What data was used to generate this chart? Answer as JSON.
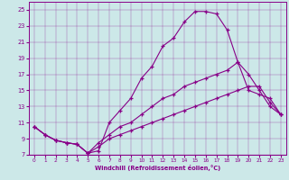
{
  "xlabel": "Windchill (Refroidissement éolien,°C)",
  "xlim": [
    -0.5,
    23.5
  ],
  "ylim": [
    7,
    26
  ],
  "xticks": [
    0,
    1,
    2,
    3,
    4,
    5,
    6,
    7,
    8,
    9,
    10,
    11,
    12,
    13,
    14,
    15,
    16,
    17,
    18,
    19,
    20,
    21,
    22,
    23
  ],
  "yticks": [
    7,
    9,
    11,
    13,
    15,
    17,
    19,
    21,
    23,
    25
  ],
  "line_color": "#880088",
  "bg_color": "#cce8e8",
  "line1_x": [
    0,
    1,
    2,
    3,
    4,
    5,
    6,
    7,
    8,
    9,
    10,
    11,
    12,
    13,
    14,
    15,
    16,
    17,
    18,
    19,
    20,
    21,
    22,
    23
  ],
  "line1_y": [
    10.5,
    9.5,
    8.8,
    8.5,
    8.3,
    7.2,
    7.5,
    11.0,
    12.5,
    14.0,
    16.5,
    18.0,
    20.5,
    21.5,
    23.5,
    24.8,
    24.8,
    24.5,
    22.5,
    18.5,
    17.0,
    15.0,
    13.0,
    12.0
  ],
  "line2_x": [
    0,
    1,
    2,
    3,
    4,
    5,
    6,
    7,
    8,
    9,
    10,
    11,
    12,
    13,
    14,
    15,
    16,
    17,
    18,
    19,
    20,
    21,
    22,
    23
  ],
  "line2_y": [
    10.5,
    9.5,
    8.8,
    8.5,
    8.3,
    7.2,
    8.5,
    9.5,
    10.5,
    11.0,
    12.0,
    13.0,
    14.0,
    14.5,
    15.5,
    16.0,
    16.5,
    17.0,
    17.5,
    18.5,
    15.0,
    14.5,
    14.0,
    12.0
  ],
  "line3_x": [
    0,
    1,
    2,
    3,
    4,
    5,
    6,
    7,
    8,
    9,
    10,
    11,
    12,
    13,
    14,
    15,
    16,
    17,
    18,
    19,
    20,
    21,
    22,
    23
  ],
  "line3_y": [
    10.5,
    9.5,
    8.8,
    8.5,
    8.3,
    7.2,
    8.0,
    9.0,
    9.5,
    10.0,
    10.5,
    11.0,
    11.5,
    12.0,
    12.5,
    13.0,
    13.5,
    14.0,
    14.5,
    15.0,
    15.5,
    15.5,
    13.5,
    12.0
  ]
}
